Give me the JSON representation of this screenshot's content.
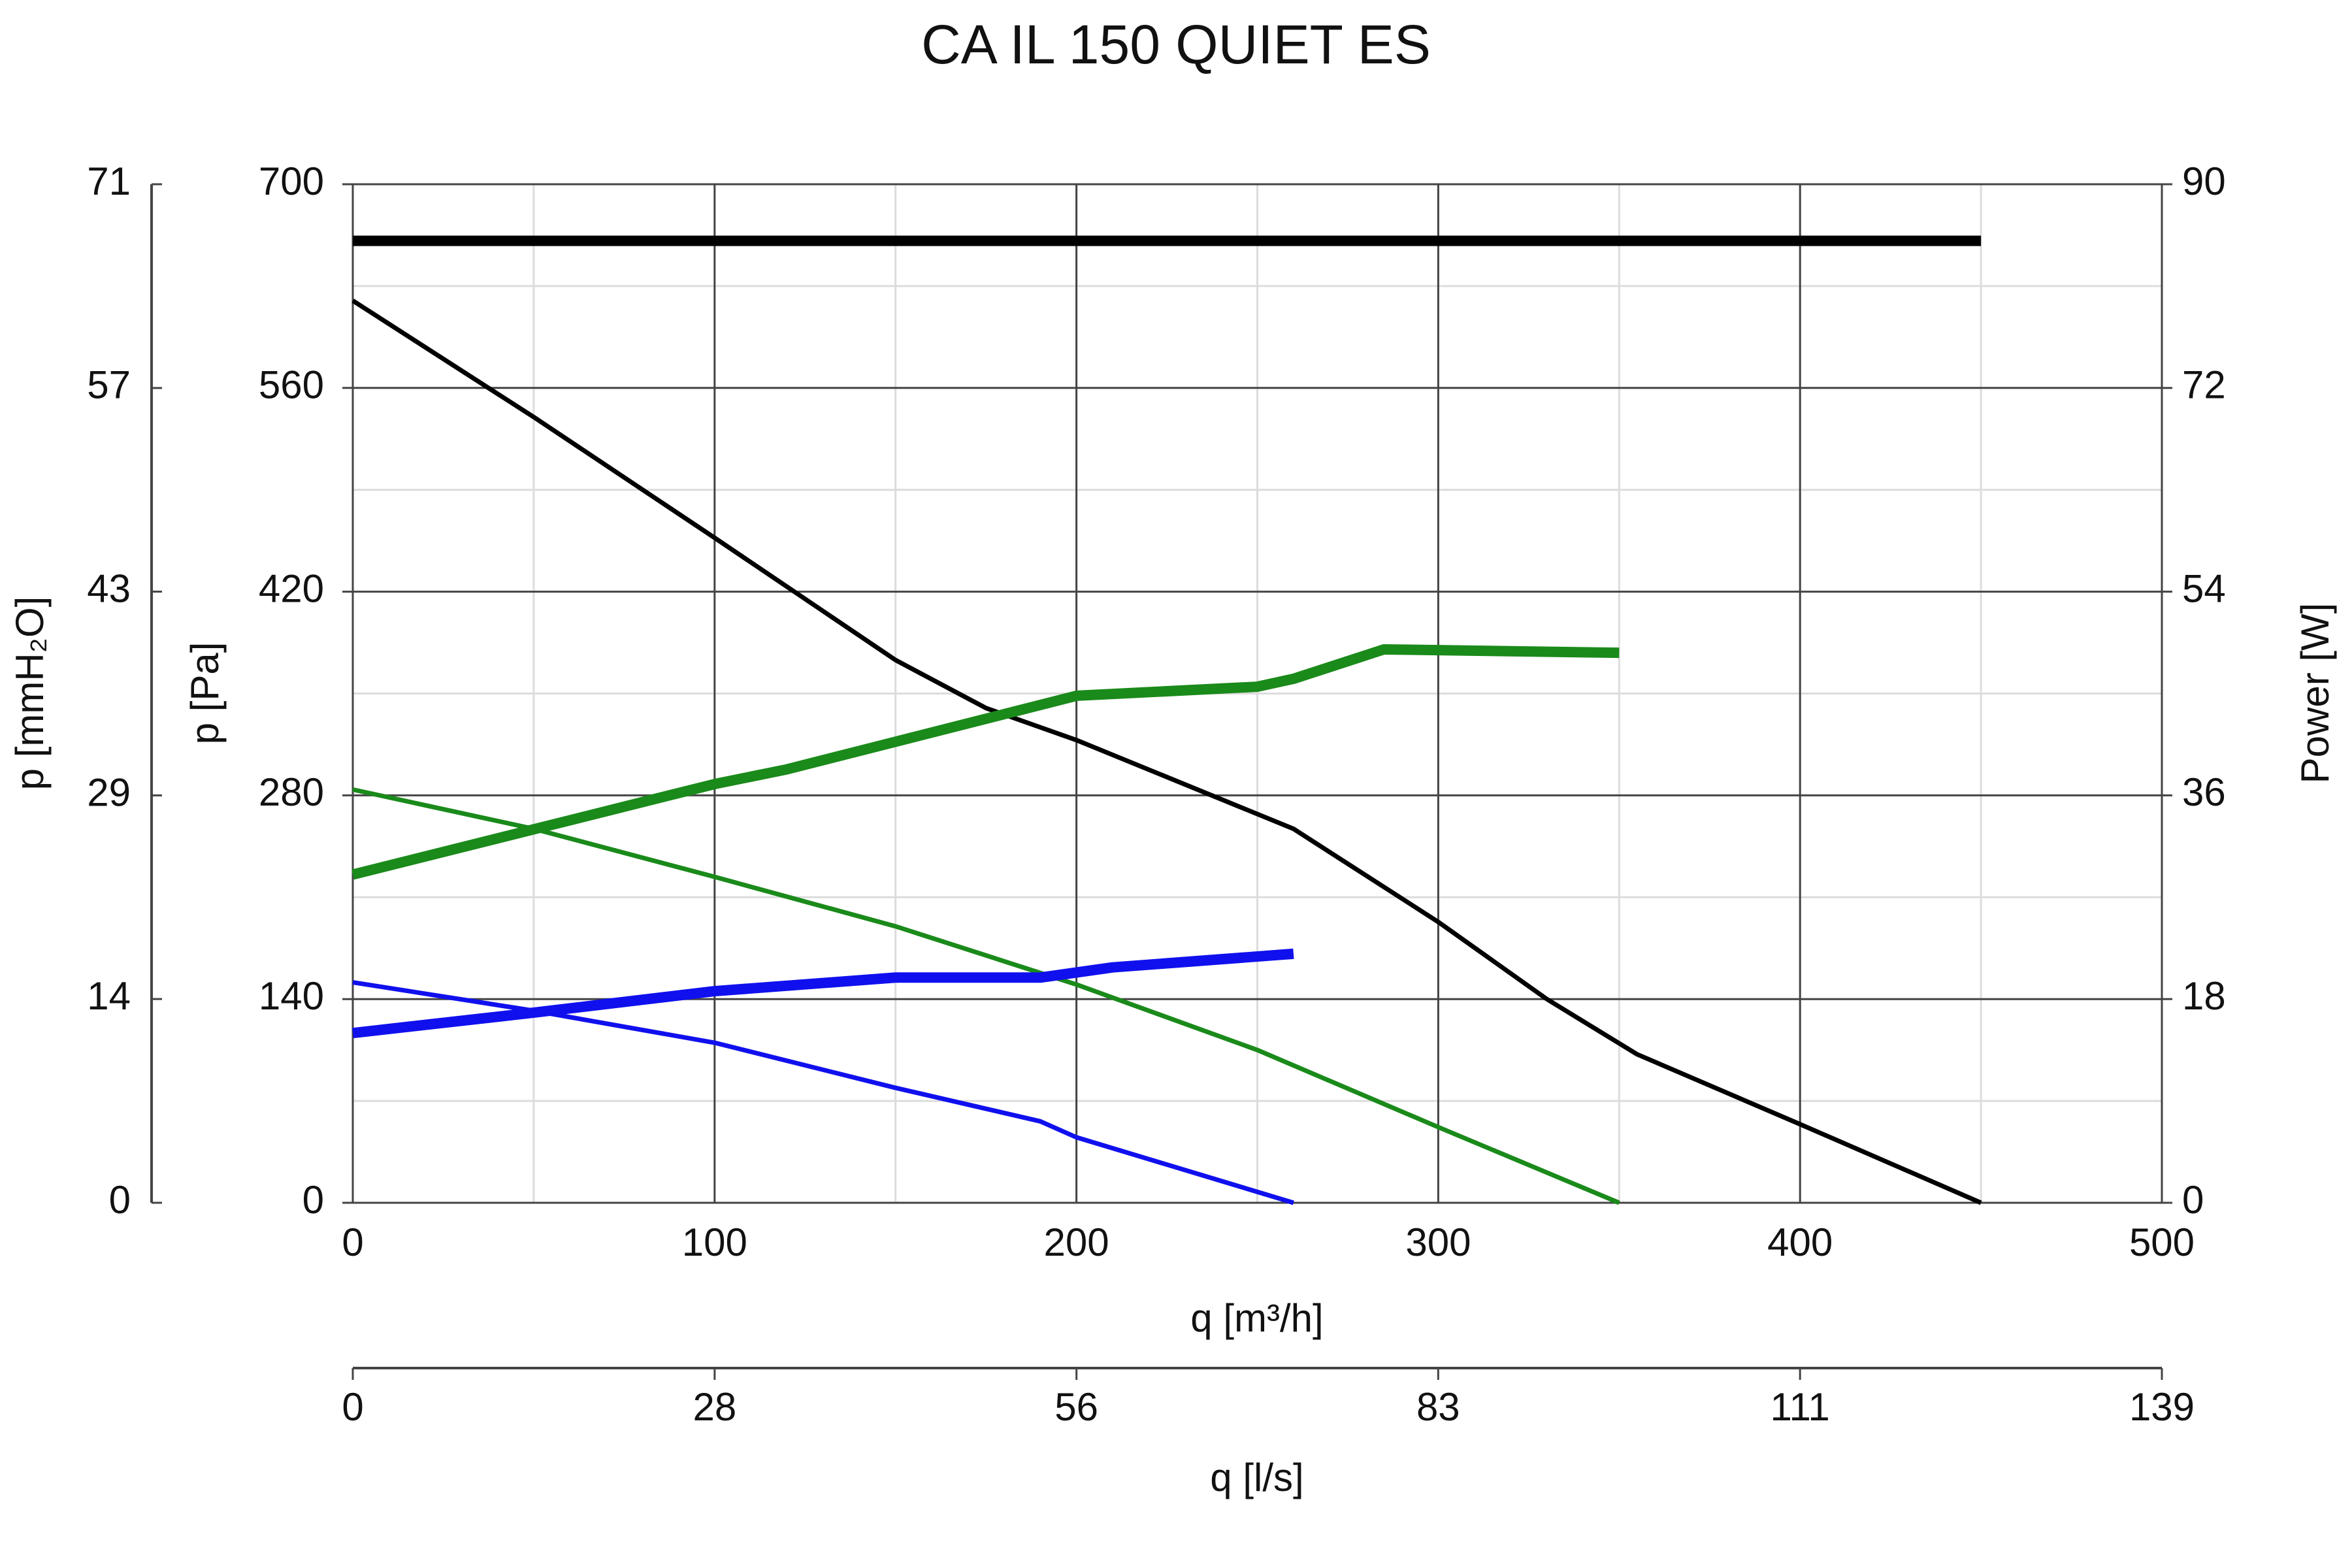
{
  "chart_data": {
    "type": "line",
    "title": "CA IL 150 QUIET ES",
    "x_label": "q [m³/h]",
    "x2_label": "q [l/s]",
    "y_label": "p [Pa]",
    "y3_label": "p [mmH₂O]",
    "y2_label": "Power [W]",
    "xlim": [
      0,
      500
    ],
    "xticks": [
      0,
      100,
      200,
      300,
      400,
      500
    ],
    "x2lim": [
      0,
      138.89
    ],
    "x2ticks": [
      0,
      {
        "value": 27.78,
        "label": "28"
      },
      {
        "value": 55.56,
        "label": "56"
      },
      {
        "value": 83.33,
        "label": "83"
      },
      {
        "value": 111.11,
        "label": "111"
      },
      {
        "value": 138.89,
        "label": "139"
      }
    ],
    "ylim": [
      0,
      700
    ],
    "yticks": [
      0,
      140,
      280,
      420,
      560,
      700
    ],
    "y3lim": [
      0,
      71.38
    ],
    "y3ticks": [
      0,
      {
        "value": 14.28,
        "label": "14"
      },
      {
        "value": 28.55,
        "label": "29"
      },
      {
        "value": 42.83,
        "label": "43"
      },
      {
        "value": 57.1,
        "label": "57"
      },
      {
        "value": 71.38,
        "label": "71"
      }
    ],
    "y2lim": [
      0,
      90
    ],
    "y2ticks": [
      0,
      18,
      36,
      54,
      72,
      90
    ],
    "grid": true,
    "series": [
      {
        "color": "#000000",
        "x": [
          0,
          50,
          100,
          150,
          175,
          200,
          260,
          300,
          330,
          355,
          400,
          450
        ],
        "values": [
          620,
          540,
          457,
          373,
          340,
          318,
          257,
          193,
          140,
          102,
          54,
          0
        ]
      },
      {
        "color": "#000000",
        "axis": "y2",
        "x": [
          0,
          450
        ],
        "values": [
          85,
          85
        ]
      },
      {
        "color": "#1a8a1a",
        "x": [
          0,
          50,
          100,
          150,
          200,
          250,
          300,
          350
        ],
        "values": [
          284,
          257,
          224,
          190,
          150,
          105,
          52,
          0
        ]
      },
      {
        "color": "#1a8a1a",
        "axis": "y2",
        "x": [
          0,
          50,
          100,
          120,
          200,
          250,
          260,
          285,
          350
        ],
        "values": [
          29,
          33,
          37,
          38.3,
          44.8,
          45.6,
          46.3,
          48.9,
          48.6
        ]
      },
      {
        "color": "#1010ee",
        "x": [
          0,
          50,
          100,
          150,
          190,
          200,
          260
        ],
        "values": [
          151.5,
          132,
          110,
          79,
          56,
          45,
          0
        ]
      },
      {
        "color": "#1010ee",
        "axis": "y2",
        "x": [
          0,
          50,
          100,
          150,
          190,
          210,
          260
        ],
        "values": [
          15,
          16.8,
          18.7,
          19.9,
          19.9,
          20.8,
          22
        ]
      }
    ]
  }
}
